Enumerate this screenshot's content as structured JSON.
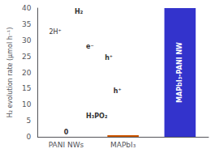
{
  "chart_data": {
    "type": "bar",
    "categories": [
      "PANI NWs",
      "MAPbI₃",
      null
    ],
    "values": [
      0.0,
      0.5,
      40.0
    ],
    "colors": [
      "#888888",
      "#cc5500",
      "#3333cc"
    ],
    "ylabel": "H₂ evolution rate (μmol h⁻¹)",
    "ylim": [
      0,
      40
    ],
    "yticks": [
      0,
      5,
      10,
      15,
      20,
      25,
      30,
      35,
      40
    ],
    "grid": false,
    "annotations": [
      "0",
      "MAPbI₃-PANI NW",
      "H₂",
      "2H⁺",
      "e⁻",
      "h⁺",
      "h⁺",
      "H₃PO₂"
    ]
  }
}
